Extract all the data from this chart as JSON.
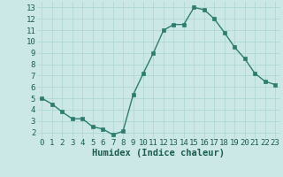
{
  "x": [
    0,
    1,
    2,
    3,
    4,
    5,
    6,
    7,
    8,
    9,
    10,
    11,
    12,
    13,
    14,
    15,
    16,
    17,
    18,
    19,
    20,
    21,
    22,
    23
  ],
  "y": [
    5.0,
    4.5,
    3.8,
    3.2,
    3.2,
    2.5,
    2.3,
    1.8,
    2.1,
    5.3,
    7.2,
    9.0,
    11.0,
    11.5,
    11.5,
    13.0,
    12.8,
    12.0,
    10.8,
    9.5,
    8.5,
    7.2,
    6.5,
    6.2
  ],
  "line_color": "#2d7d6e",
  "marker": "s",
  "marker_size": 2.2,
  "bg_color": "#cce8e6",
  "grid_color": "#b0d8d4",
  "xlabel": "Humidex (Indice chaleur)",
  "xlim": [
    -0.5,
    23.5
  ],
  "ylim": [
    1.5,
    13.5
  ],
  "yticks": [
    2,
    3,
    4,
    5,
    6,
    7,
    8,
    9,
    10,
    11,
    12,
    13
  ],
  "xticks": [
    0,
    1,
    2,
    3,
    4,
    5,
    6,
    7,
    8,
    9,
    10,
    11,
    12,
    13,
    14,
    15,
    16,
    17,
    18,
    19,
    20,
    21,
    22,
    23
  ],
  "axis_label_color": "#1a5c50",
  "tick_color": "#1a5c50",
  "font_size": 6.5,
  "xlabel_fontsize": 7.5,
  "linewidth": 1.0
}
